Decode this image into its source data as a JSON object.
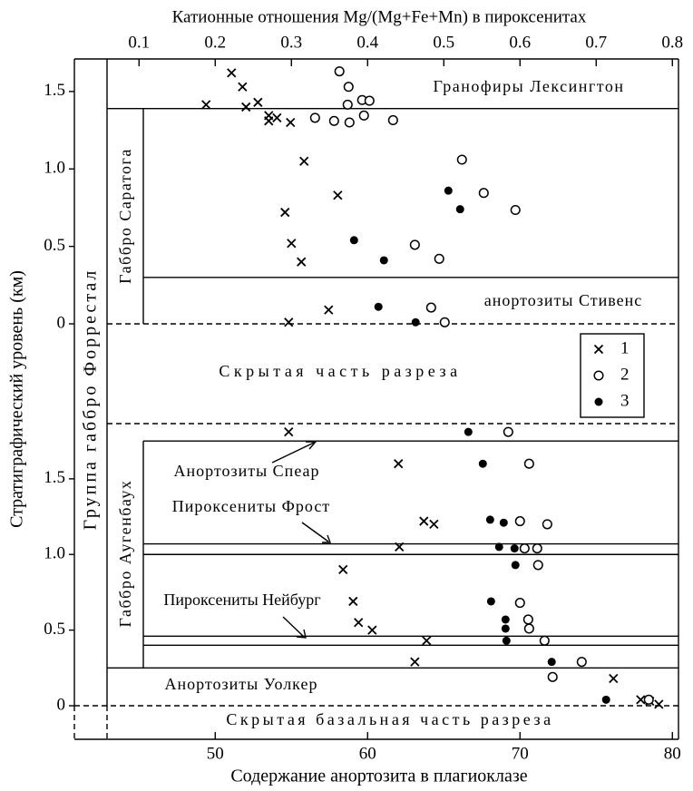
{
  "chart_data": [
    {
      "type": "scatter",
      "title": "Катионные отношения Mg/(Mg+Fe+Mn) в пироксенитах",
      "xlabel": "Содержание анортозита в плагиоклазе",
      "ylabel": "Стратиграфический уровень (км)",
      "group_label": "Группа габбро Форрестал",
      "xlim": [
        42.9,
        80.4
      ],
      "xticks": [
        50,
        60,
        70,
        80
      ],
      "x2lim": [
        0.058,
        0.808
      ],
      "x2ticks": [
        0.1,
        0.2,
        0.3,
        0.4,
        0.5,
        0.6,
        0.7,
        0.8
      ],
      "ylim": [
        0,
        1.71
      ],
      "yticks": [
        0,
        0.5,
        {
          "value": 1,
          "label": "1.0"
        },
        1.5
      ],
      "boundaries": [
        1.39,
        0.3
      ],
      "annotations": [
        "Гранофиры Лексингтон",
        "анортозиты Стивенс",
        "Скрытая часть разреза",
        "Габбро Саратога"
      ],
      "legend": "right",
      "series": [
        {
          "name": "1",
          "marker": "x",
          "color": "#000",
          "x": [
            51.07,
            51.79,
            49.4,
            52.8,
            52.02,
            53.51,
            53.51,
            54.05,
            54.94,
            55.83,
            58.04,
            54.58,
            55.0,
            55.65,
            57.44,
            54.82
          ],
          "values": [
            1.62,
            1.53,
            1.415,
            1.43,
            1.4,
            1.345,
            1.31,
            1.33,
            1.3,
            1.05,
            0.83,
            0.72,
            0.52,
            0.4,
            0.09,
            0.01
          ]
        },
        {
          "name": "2",
          "marker": "o",
          "color": "#000",
          "x": [
            58.15,
            58.75,
            58.69,
            59.64,
            60.12,
            56.55,
            57.8,
            58.81,
            59.76,
            61.67,
            66.19,
            67.62,
            69.7,
            63.1,
            64.7,
            64.17,
            65.06
          ],
          "values": [
            1.63,
            1.53,
            1.415,
            1.445,
            1.44,
            1.33,
            1.31,
            1.3,
            1.345,
            1.315,
            1.06,
            0.845,
            0.735,
            0.51,
            0.42,
            0.105,
            0.01
          ]
        },
        {
          "name": "3",
          "marker": "dot",
          "color": "#000",
          "x": [
            65.3,
            66.07,
            59.11,
            61.07,
            60.71,
            63.15
          ],
          "values": [
            0.86,
            0.74,
            0.54,
            0.41,
            0.11,
            0.01
          ]
        }
      ]
    },
    {
      "type": "scatter",
      "ylim": [
        0,
        1.865
      ],
      "yticks": [
        0,
        0.5,
        {
          "value": 1,
          "label": "1.0"
        },
        1.5
      ],
      "boundaries": [
        1.75,
        1.07,
        1.0,
        0.46,
        0.4,
        0.25
      ],
      "annotations": [
        "Анортозиты Спеар",
        "Пироксениты Фрост",
        "Пироксениты Нейбург",
        "Анортозиты Уолкер",
        "Скрытая базальная часть разреза",
        "Габбро Аугенбаух"
      ],
      "series": [
        {
          "marker": "x",
          "color": "#000",
          "x": [
            54.82,
            62.02,
            63.69,
            64.35,
            62.08,
            58.39,
            59.05,
            59.4,
            60.3,
            63.87,
            63.1,
            76.13,
            77.92,
            78.51,
            79.11
          ],
          "values": [
            1.81,
            1.6,
            1.22,
            1.2,
            1.05,
            0.9,
            0.69,
            0.55,
            0.5,
            0.43,
            0.29,
            0.18,
            0.04,
            0.03,
            0.01
          ]
        },
        {
          "marker": "o",
          "color": "#000",
          "x": [
            69.23,
            70.6,
            70.0,
            71.79,
            70.3,
            71.13,
            71.19,
            70.0,
            70.54,
            70.6,
            71.61,
            74.05,
            72.14,
            78.45
          ],
          "values": [
            1.81,
            1.6,
            1.22,
            1.2,
            1.04,
            1.04,
            0.93,
            0.68,
            0.57,
            0.51,
            0.43,
            0.29,
            0.19,
            0.04
          ]
        },
        {
          "marker": "dot",
          "color": "#000",
          "x": [
            66.61,
            67.56,
            68.04,
            68.93,
            68.63,
            69.64,
            69.7,
            68.1,
            69.05,
            69.05,
            69.11,
            72.08,
            75.65
          ],
          "values": [
            1.81,
            1.6,
            1.23,
            1.21,
            1.05,
            1.04,
            0.93,
            0.69,
            0.57,
            0.51,
            0.43,
            0.29,
            0.04
          ]
        }
      ]
    }
  ]
}
